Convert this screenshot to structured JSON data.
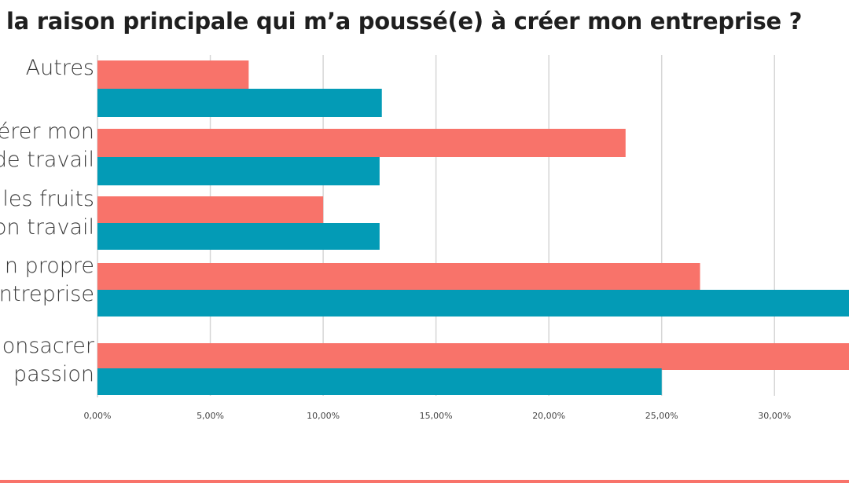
{
  "chart_data": {
    "type": "bar",
    "orientation": "horizontal",
    "title": "la raison principale qui m’a poussé(e) à créer mon entreprise ?",
    "categories": [
      {
        "lines": [
          "Autres"
        ]
      },
      {
        "lines": [
          "érer mon",
          "de travail"
        ]
      },
      {
        "lines": [
          "les fruits",
          "on travail"
        ]
      },
      {
        "lines": [
          "n propre",
          "ntreprise"
        ]
      },
      {
        "lines": [
          "onsacrer",
          "passion"
        ]
      }
    ],
    "series": [
      {
        "color": "#f8736a",
        "values": [
          6.7,
          23.4,
          10.0,
          26.7,
          33.3
        ]
      },
      {
        "color": "#039bb6",
        "values": [
          12.6,
          12.5,
          12.5,
          33.3,
          25.0
        ]
      }
    ],
    "xlim": [
      0,
      33.3
    ],
    "xticks": [
      "0,00%",
      "5,00%",
      "10,00%",
      "15,00%",
      "20,00%",
      "25,00%",
      "30,00%"
    ],
    "xtick_values": [
      0,
      5,
      10,
      15,
      20,
      25,
      30
    ],
    "grid": true,
    "legend": "none"
  },
  "accent_color": "#f8736a"
}
